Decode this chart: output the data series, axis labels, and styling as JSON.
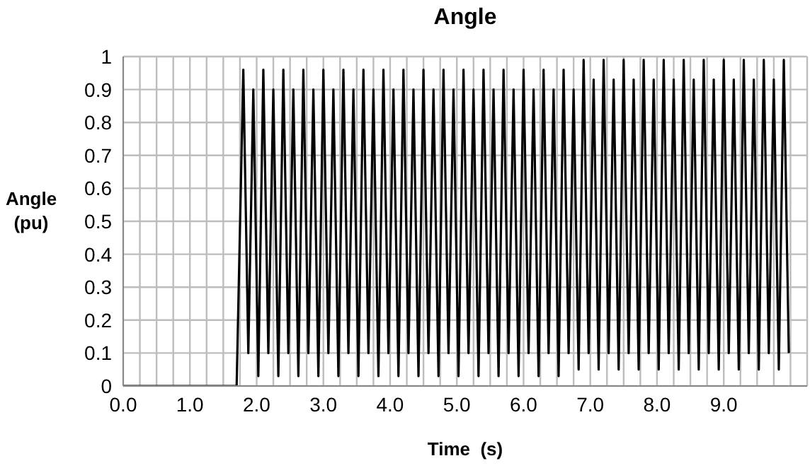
{
  "chart_data": {
    "type": "line",
    "title": "Angle",
    "xlabel": "Time  (s)",
    "ylabel": "Angle (pu)",
    "x": [
      0,
      1.7,
      1.8,
      1.875,
      1.95,
      2.025,
      2.1,
      2.175,
      2.25,
      2.325,
      2.4,
      2.475,
      2.55,
      2.625,
      2.7,
      2.775,
      2.85,
      2.925,
      3.0,
      3.075,
      3.15,
      3.225,
      3.3,
      3.375,
      3.45,
      3.525,
      3.6,
      3.675,
      3.75,
      3.825,
      3.9,
      3.975,
      4.05,
      4.125,
      4.2,
      4.275,
      4.35,
      4.425,
      4.5,
      4.575,
      4.65,
      4.725,
      4.8,
      4.875,
      4.95,
      5.025,
      5.1,
      5.175,
      5.25,
      5.325,
      5.4,
      5.475,
      5.55,
      5.625,
      5.7,
      5.775,
      5.85,
      5.925,
      6.0,
      6.075,
      6.15,
      6.225,
      6.3,
      6.375,
      6.45,
      6.525,
      6.6,
      6.675,
      6.75,
      6.825,
      6.9,
      6.975,
      7.05,
      7.125,
      7.2,
      7.275,
      7.35,
      7.425,
      7.5,
      7.575,
      7.65,
      7.725,
      7.8,
      7.875,
      7.95,
      8.025,
      8.1,
      8.175,
      8.25,
      8.325,
      8.4,
      8.475,
      8.55,
      8.625,
      8.7,
      8.775,
      8.85,
      8.925,
      9.0,
      9.075,
      9.15,
      9.225,
      9.3,
      9.375,
      9.45,
      9.525,
      9.6,
      9.675,
      9.75,
      9.825,
      9.9,
      9.975
    ],
    "series": [
      {
        "color": "#000000",
        "values": [
          0,
          0,
          0.96,
          0.1,
          0.9,
          0.03,
          0.96,
          0.1,
          0.9,
          0.03,
          0.96,
          0.1,
          0.9,
          0.03,
          0.96,
          0.1,
          0.9,
          0.03,
          0.96,
          0.1,
          0.9,
          0.03,
          0.96,
          0.1,
          0.9,
          0.03,
          0.96,
          0.1,
          0.9,
          0.03,
          0.96,
          0.1,
          0.9,
          0.03,
          0.96,
          0.1,
          0.9,
          0.03,
          0.96,
          0.1,
          0.9,
          0.03,
          0.96,
          0.1,
          0.9,
          0.03,
          0.96,
          0.1,
          0.9,
          0.03,
          0.96,
          0.1,
          0.9,
          0.03,
          0.96,
          0.1,
          0.9,
          0.03,
          0.96,
          0.1,
          0.9,
          0.03,
          0.96,
          0.1,
          0.9,
          0.03,
          0.96,
          0.1,
          0.9,
          0.05,
          0.99,
          0.1,
          0.93,
          0.05,
          0.99,
          0.1,
          0.93,
          0.05,
          0.99,
          0.1,
          0.93,
          0.05,
          0.99,
          0.1,
          0.93,
          0.05,
          0.99,
          0.1,
          0.93,
          0.05,
          0.99,
          0.1,
          0.93,
          0.05,
          0.99,
          0.1,
          0.93,
          0.05,
          0.99,
          0.1,
          0.93,
          0.05,
          0.99,
          0.1,
          0.93,
          0.05,
          0.99,
          0.1,
          0.93,
          0.05,
          0.99,
          0.1
        ]
      }
    ],
    "xlim": [
      0,
      10.25
    ],
    "xticks": [
      {
        "value": 0,
        "label": "0.0"
      },
      {
        "value": 0.25,
        "label": null
      },
      {
        "value": 0.5,
        "label": null
      },
      {
        "value": 0.75,
        "label": null
      },
      {
        "value": 1,
        "label": "1.0"
      },
      {
        "value": 1.25,
        "label": null
      },
      {
        "value": 1.5,
        "label": null
      },
      {
        "value": 1.75,
        "label": null
      },
      {
        "value": 2,
        "label": "2.0"
      },
      {
        "value": 2.25,
        "label": null
      },
      {
        "value": 2.5,
        "label": null
      },
      {
        "value": 2.75,
        "label": null
      },
      {
        "value": 3,
        "label": "3.0"
      },
      {
        "value": 3.25,
        "label": null
      },
      {
        "value": 3.5,
        "label": null
      },
      {
        "value": 3.75,
        "label": null
      },
      {
        "value": 4,
        "label": "4.0"
      },
      {
        "value": 4.25,
        "label": null
      },
      {
        "value": 4.5,
        "label": null
      },
      {
        "value": 4.75,
        "label": null
      },
      {
        "value": 5,
        "label": "5.0"
      },
      {
        "value": 5.25,
        "label": null
      },
      {
        "value": 5.5,
        "label": null
      },
      {
        "value": 5.75,
        "label": null
      },
      {
        "value": 6,
        "label": "6.0"
      },
      {
        "value": 6.25,
        "label": null
      },
      {
        "value": 6.5,
        "label": null
      },
      {
        "value": 6.75,
        "label": null
      },
      {
        "value": 7,
        "label": "7.0"
      },
      {
        "value": 7.25,
        "label": null
      },
      {
        "value": 7.5,
        "label": null
      },
      {
        "value": 7.75,
        "label": null
      },
      {
        "value": 8,
        "label": "8.0"
      },
      {
        "value": 8.25,
        "label": null
      },
      {
        "value": 8.5,
        "label": null
      },
      {
        "value": 8.75,
        "label": null
      },
      {
        "value": 9,
        "label": "9.0"
      },
      {
        "value": 9.25,
        "label": null
      },
      {
        "value": 9.5,
        "label": null
      },
      {
        "value": 9.75,
        "label": null
      },
      {
        "value": 10,
        "label": null
      }
    ],
    "ylim": [
      0,
      1
    ],
    "yticks": [
      0,
      0.1,
      0.2,
      0.3,
      0.4,
      0.5,
      0.6,
      0.7,
      0.8,
      0.9,
      1
    ],
    "grid": true,
    "legend": false,
    "marker": "none",
    "line_style": "solid"
  }
}
